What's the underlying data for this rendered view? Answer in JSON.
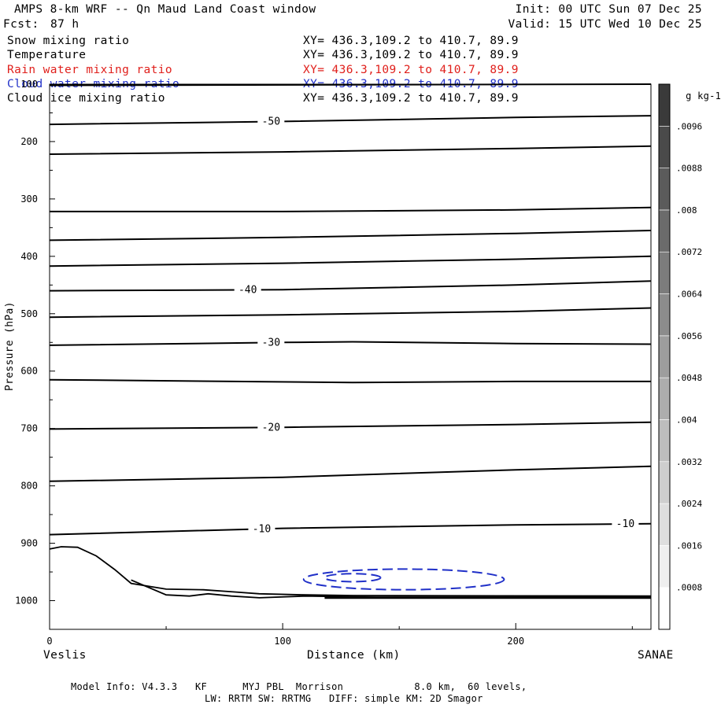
{
  "header": {
    "title": "AMPS 8-km WRF -- Qn Maud Land Coast window",
    "fcst_label": "Fcst:",
    "fcst_value": "87 h",
    "init": "Init: 00 UTC Sun 07 Dec 25",
    "valid": "Valid: 15 UTC Wed 10 Dec 25"
  },
  "fields": [
    {
      "name": "Snow mixing ratio",
      "xy": "XY= 436.3,109.2 to 410.7, 89.9",
      "color": "#000000"
    },
    {
      "name": "Temperature",
      "xy": "XY= 436.3,109.2 to 410.7, 89.9",
      "color": "#000000"
    },
    {
      "name": "Rain water mixing ratio",
      "xy": "XY= 436.3,109.2 to 410.7, 89.9",
      "color": "#e0201c"
    },
    {
      "name": "Cloud water mixing ratio",
      "xy": "XY= 436.3,109.2 to 410.7, 89.9",
      "color": "#2030c8"
    },
    {
      "name": "Cloud ice mixing ratio",
      "xy": "XY= 436.3,109.2 to 410.7, 89.9",
      "color": "#000000"
    }
  ],
  "footer": {
    "line1": "Model Info: V4.3.3   KF      MYJ PBL  Morrison            8.0 km,  60 levels,",
    "line2": "LW: RRTM SW: RRTMG   DIFF: simple KM: 2D Smagor"
  },
  "chart_data": {
    "type": "cross-section",
    "xlabel": "Distance (km)",
    "ylabel": "Pressure (hPa)",
    "xlim": [
      0,
      258
    ],
    "ylim": [
      1050,
      100
    ],
    "x_ticks": [
      0,
      100,
      200
    ],
    "y_ticks": [
      100,
      200,
      300,
      400,
      500,
      600,
      700,
      800,
      900,
      1000
    ],
    "left_location": "Veslis",
    "right_location": "SANAE",
    "temperature_contours": [
      {
        "label": "",
        "points": [
          [
            0,
            102
          ],
          [
            258,
            100
          ]
        ]
      },
      {
        "label": "-50",
        "label_at": 95,
        "points": [
          [
            0,
            170
          ],
          [
            100,
            165
          ],
          [
            200,
            158
          ],
          [
            258,
            155
          ]
        ]
      },
      {
        "label": "",
        "points": [
          [
            0,
            222
          ],
          [
            100,
            218
          ],
          [
            200,
            212
          ],
          [
            258,
            208
          ]
        ]
      },
      {
        "label": "",
        "points": [
          [
            0,
            322
          ],
          [
            100,
            322
          ],
          [
            200,
            319
          ],
          [
            258,
            315
          ]
        ]
      },
      {
        "label": "",
        "points": [
          [
            0,
            372
          ],
          [
            100,
            367
          ],
          [
            200,
            360
          ],
          [
            258,
            355
          ]
        ]
      },
      {
        "label": "",
        "points": [
          [
            0,
            417
          ],
          [
            100,
            412
          ],
          [
            200,
            405
          ],
          [
            258,
            400
          ]
        ]
      },
      {
        "label": "-40",
        "label_at": 85,
        "points": [
          [
            0,
            460
          ],
          [
            100,
            458
          ],
          [
            200,
            450
          ],
          [
            258,
            443
          ]
        ]
      },
      {
        "label": "",
        "points": [
          [
            0,
            506
          ],
          [
            100,
            502
          ],
          [
            200,
            496
          ],
          [
            258,
            490
          ]
        ]
      },
      {
        "label": "-30",
        "label_at": 95,
        "points": [
          [
            0,
            555
          ],
          [
            100,
            550
          ],
          [
            130,
            549
          ],
          [
            200,
            552
          ],
          [
            258,
            553
          ]
        ]
      },
      {
        "label": "",
        "points": [
          [
            0,
            615
          ],
          [
            130,
            620
          ],
          [
            200,
            618
          ],
          [
            258,
            618
          ]
        ]
      },
      {
        "label": "-20",
        "label_at": 95,
        "points": [
          [
            0,
            701
          ],
          [
            100,
            698
          ],
          [
            200,
            693
          ],
          [
            258,
            689
          ]
        ]
      },
      {
        "label": "",
        "points": [
          [
            0,
            792
          ],
          [
            100,
            785
          ],
          [
            200,
            772
          ],
          [
            258,
            766
          ]
        ]
      },
      {
        "label": "-10",
        "label_at": 91,
        "label2_at": 247,
        "points": [
          [
            0,
            885
          ],
          [
            100,
            874
          ],
          [
            200,
            868
          ],
          [
            258,
            866
          ]
        ]
      }
    ],
    "terrain_lines": [
      {
        "points": [
          [
            0,
            910
          ],
          [
            5,
            906
          ],
          [
            12,
            907
          ],
          [
            20,
            922
          ],
          [
            28,
            946
          ],
          [
            35,
            970
          ],
          [
            50,
            980
          ],
          [
            66,
            981
          ],
          [
            80,
            985
          ],
          [
            90,
            988
          ],
          [
            110,
            990
          ],
          [
            130,
            991
          ],
          [
            258,
            992
          ]
        ]
      },
      {
        "points": [
          [
            35,
            964
          ],
          [
            50,
            990
          ],
          [
            60,
            992
          ],
          [
            68,
            988
          ],
          [
            78,
            992
          ],
          [
            90,
            995
          ],
          [
            110,
            992
          ],
          [
            140,
            994
          ],
          [
            180,
            994
          ],
          [
            258,
            994
          ]
        ]
      }
    ],
    "cloud_water_contours": [
      {
        "color": "#2030c8",
        "dashed": true,
        "center": [
          152,
          963
        ],
        "rx": 43,
        "ry": 18
      },
      {
        "color": "#2030c8",
        "dashed": true,
        "center": [
          130,
          960
        ],
        "rx": 12,
        "ry": 7
      }
    ],
    "colorbar": {
      "units": "g kg-1",
      "tick_labels": [
        ".0008",
        ".0016",
        ".0024",
        ".0032",
        ".004",
        ".0048",
        ".0056",
        ".0064",
        ".0072",
        ".008",
        ".0088",
        ".0096"
      ],
      "vmin": 0,
      "vmax": 0.0104
    }
  }
}
